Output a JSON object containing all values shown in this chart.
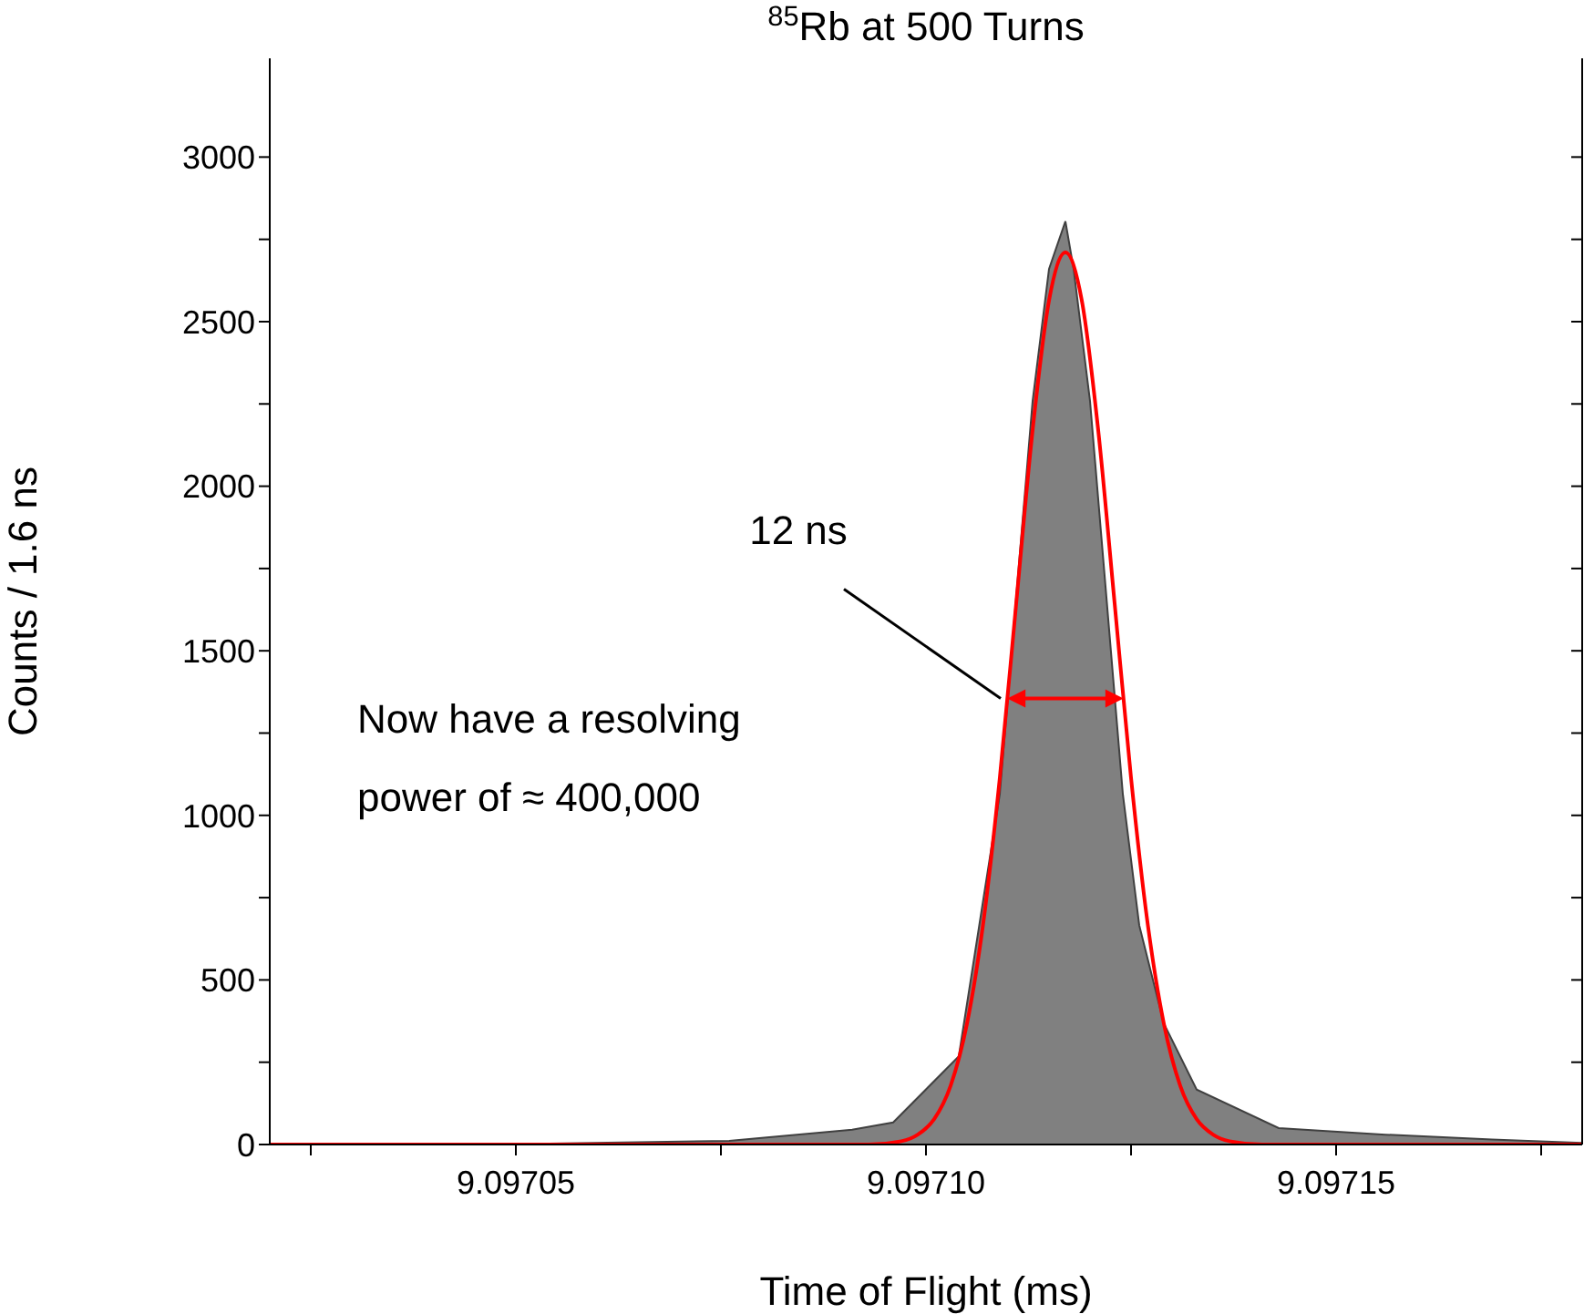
{
  "chart_data": {
    "type": "area",
    "title": "$^{85}$Rb at 500 Turns",
    "xlabel": "Time of Flight (ms)",
    "ylabel": "Counts / 1.6 ns",
    "xlim": [
      9.09702,
      9.09718
    ],
    "xticks": [
      {
        "value": 9.097025,
        "label": null
      },
      {
        "value": 9.09705,
        "label": "9.09705"
      },
      {
        "value": 9.097075,
        "label": null
      },
      {
        "value": 9.0971,
        "label": "9.09710"
      },
      {
        "value": 9.097125,
        "label": null
      },
      {
        "value": 9.09715,
        "label": "9.09715"
      },
      {
        "value": 9.097175,
        "label": null
      }
    ],
    "ylim": [
      0,
      3300
    ],
    "yticks": [
      0,
      {
        "value": 250,
        "label": null
      },
      500,
      {
        "value": 750,
        "label": null
      },
      1000,
      {
        "value": 1250,
        "label": null
      },
      1500,
      {
        "value": 1750,
        "label": null
      },
      2000,
      {
        "value": 2250,
        "label": null
      },
      2500,
      {
        "value": 2750,
        "label": null
      },
      3000
    ],
    "annotations": [
      {
        "text": "12 ns",
        "x": 9.09711,
        "y": 1355
      },
      "Now have a resolving power of ≈ 400,000"
    ],
    "series": [
      {
        "color": "#808080",
        "x": [
          9.09702,
          9.097032,
          9.097054,
          9.097076,
          9.097091,
          9.097096,
          9.097104,
          9.097109,
          9.097111,
          9.097113,
          9.097115,
          9.097117,
          9.097118,
          9.09712,
          9.097122,
          9.097124,
          9.097126,
          9.097129,
          9.097133,
          9.097143,
          9.097156,
          9.097169,
          9.09718
        ],
        "values": [
          0,
          0,
          3,
          11,
          45,
          67,
          268,
          1065,
          1662,
          2259,
          2660,
          2805,
          2660,
          2259,
          1662,
          1065,
          666,
          368,
          167,
          50,
          30,
          15,
          5
        ]
      },
      {
        "type": "line",
        "color": "#ff0000",
        "x": [
          9.09702,
          9.097093,
          9.097097,
          9.097099,
          9.097101,
          9.097103,
          9.097105,
          9.097107,
          9.097109,
          9.097111,
          9.097113,
          9.097115,
          9.097117,
          9.097119,
          9.097121,
          9.097123,
          9.097125,
          9.097127,
          9.097129,
          9.097131,
          9.097133,
          9.097135,
          9.097137,
          9.097141,
          9.09718
        ],
        "values": [
          0,
          0,
          10,
          30,
          77,
          178,
          367,
          676,
          1114,
          1644,
          2170,
          2564,
          2710,
          2564,
          2170,
          1644,
          1114,
          676,
          367,
          178,
          77,
          30,
          10,
          0,
          0
        ]
      }
    ]
  }
}
